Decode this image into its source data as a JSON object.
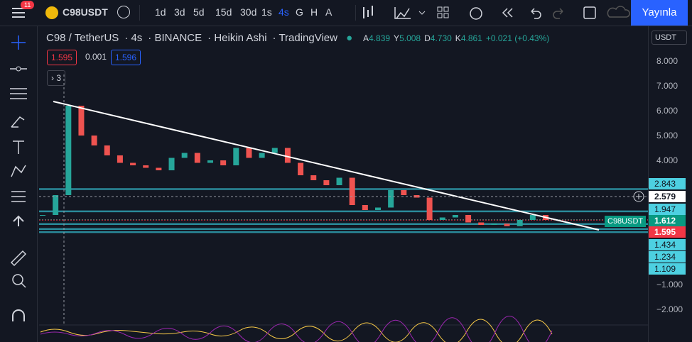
{
  "toolbar": {
    "badge": "11",
    "symbol": "C98USDT",
    "intervals": [
      "1d",
      "3d",
      "5d",
      "15d",
      "30d",
      "1s",
      "4s",
      "G",
      "H",
      "A"
    ],
    "publish": "Yayınla"
  },
  "legend": {
    "pair": "C98 / TetherUS",
    "interval": "4s",
    "exchange": "BINANCE",
    "style": "Heikin Ashi",
    "source": "TradingView",
    "ohlc": [
      {
        "key": "A",
        "value": "4.839"
      },
      {
        "key": "Y",
        "value": "5.008"
      },
      {
        "key": "D",
        "value": "4.730"
      },
      {
        "key": "K",
        "value": "4.861"
      }
    ],
    "change": "+0.021 (+0.43%)",
    "sell": "1.595",
    "spread": "0.001",
    "buy": "1.596",
    "indicators": "3"
  },
  "currency": "USDT",
  "chart": {
    "type": "candlestick",
    "ylim": [
      -2.5,
      9
    ],
    "ticks": [
      {
        "value": 8,
        "label": "8.000"
      },
      {
        "value": 7,
        "label": "7.000"
      },
      {
        "value": 6,
        "label": "6.000"
      },
      {
        "value": 5,
        "label": "5.000"
      },
      {
        "value": 4,
        "label": "4.000"
      },
      {
        "value": -1,
        "label": "−1.000"
      },
      {
        "value": -2,
        "label": "−2.000"
      }
    ],
    "levels": [
      {
        "value": 2.843,
        "label": "2.843"
      },
      {
        "value": 2.579,
        "label": "2.579"
      },
      {
        "value": 1.947,
        "label": "1.947"
      },
      {
        "value": 1.612,
        "label": "1.612"
      },
      {
        "value": 1.595,
        "label": "1.595"
      },
      {
        "value": 1.434,
        "label": "1.434"
      },
      {
        "value": 1.234,
        "label": "1.234"
      },
      {
        "value": 1.109,
        "label": "1.109"
      }
    ],
    "symbol_tag": "C98USDT",
    "up_color": "#26a69a",
    "down_color": "#ef5350",
    "closes": [
      1.8,
      2.6,
      6.2,
      5.0,
      4.6,
      4.2,
      3.9,
      3.8,
      3.7,
      3.6,
      4.1,
      4.3,
      3.9,
      4.0,
      3.8,
      4.5,
      4.1,
      4.3,
      4.5,
      3.9,
      3.4,
      3.2,
      3.0,
      3.3,
      2.2,
      2.0,
      2.1,
      2.8,
      2.6,
      2.5,
      1.6,
      1.7,
      1.8,
      1.5,
      1.4,
      1.45,
      1.35,
      1.6,
      1.8,
      1.6
    ]
  }
}
